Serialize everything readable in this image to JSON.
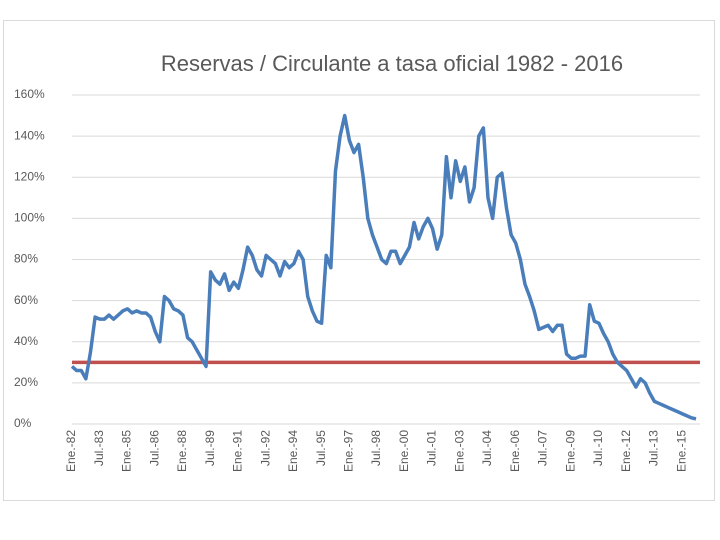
{
  "chart_data": {
    "type": "line",
    "title": "Reservas / Circulante a tasa oficial 1982 - 2016",
    "categories": [
      "Ene.-82",
      null,
      null,
      null,
      null,
      null,
      "Jul.-83",
      null,
      null,
      null,
      null,
      null,
      "Ene.-85",
      null,
      null,
      null,
      null,
      null,
      "Jul.-86",
      null,
      null,
      null,
      null,
      null,
      "Ene.-88",
      null,
      null,
      null,
      null,
      null,
      "Jul.-89",
      null,
      null,
      null,
      null,
      null,
      "Ene.-91",
      null,
      null,
      null,
      null,
      null,
      "Jul.-92",
      null,
      null,
      null,
      null,
      null,
      "Ene.-94",
      null,
      null,
      null,
      null,
      null,
      "Jul.-95",
      null,
      null,
      null,
      null,
      null,
      "Ene.-97",
      null,
      null,
      null,
      null,
      null,
      "Jul.-98",
      null,
      null,
      null,
      null,
      null,
      "Ene.-00",
      null,
      null,
      null,
      null,
      null,
      "Jul.-01",
      null,
      null,
      null,
      null,
      null,
      "Ene.-03",
      null,
      null,
      null,
      null,
      null,
      "Jul.-04",
      null,
      null,
      null,
      null,
      null,
      "Ene.-06",
      null,
      null,
      null,
      null,
      null,
      "Jul.-07",
      null,
      null,
      null,
      null,
      null,
      "Ene.-09",
      null,
      null,
      null,
      null,
      null,
      "Jul.-10",
      null,
      null,
      null,
      null,
      null,
      "Ene.-12",
      null,
      null,
      null,
      null,
      null,
      "Jul.-13",
      null,
      null,
      null,
      null,
      null,
      "Ene.-15",
      null,
      null,
      null
    ],
    "series": [
      {
        "color": "#4a7ebb",
        "values": [
          28,
          26,
          26,
          22,
          35,
          52,
          51,
          51,
          53,
          51,
          53,
          55,
          56,
          54,
          55,
          54,
          54,
          52,
          45,
          40,
          62,
          60,
          56,
          55,
          53,
          42,
          40,
          36,
          32,
          28,
          74,
          70,
          68,
          73,
          65,
          69,
          66,
          75,
          86,
          82,
          75,
          72,
          82,
          80,
          78,
          72,
          79,
          76,
          78,
          84,
          80,
          62,
          55,
          50,
          49,
          82,
          76,
          123,
          140,
          150,
          138,
          132,
          136,
          120,
          100,
          92,
          86,
          80,
          78,
          84,
          84,
          78,
          82,
          86,
          98,
          90,
          96,
          100,
          95,
          85,
          92,
          130,
          110,
          128,
          118,
          125,
          108,
          115,
          140,
          144,
          110,
          100,
          120,
          122,
          105,
          92,
          88,
          80,
          68,
          62,
          55,
          46,
          47,
          48,
          45,
          48,
          48,
          34,
          32,
          32,
          33,
          33,
          58,
          50,
          49,
          44,
          40,
          34,
          30,
          28,
          26,
          22,
          18,
          22,
          20,
          15,
          11,
          10,
          9,
          8,
          7,
          6,
          5,
          4,
          3,
          2.5
        ]
      }
    ],
    "reference_line": {
      "value": 30,
      "color": "#c0504d"
    },
    "ylim": [
      0,
      160
    ],
    "yticks": [
      {
        "value": 0,
        "label": "0%"
      },
      {
        "value": 20,
        "label": "20%"
      },
      {
        "value": 40,
        "label": "40%"
      },
      {
        "value": 60,
        "label": "60%"
      },
      {
        "value": 80,
        "label": "80%"
      },
      {
        "value": 100,
        "label": "100%"
      },
      {
        "value": 120,
        "label": "120%"
      },
      {
        "value": 140,
        "label": "140%"
      },
      {
        "value": 160,
        "label": "160%"
      }
    ],
    "grid": true
  }
}
